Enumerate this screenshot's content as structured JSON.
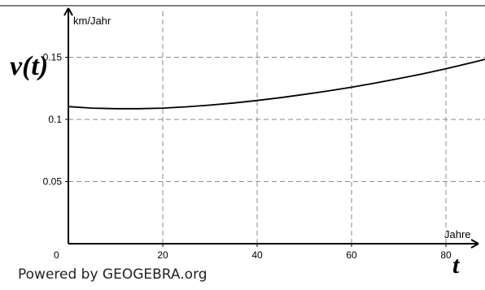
{
  "chart_data": {
    "type": "line",
    "y_axis_unit": "km/Jahr",
    "x_axis_unit": "Jahre",
    "y_symbol": "v(t)",
    "x_symbol": "t",
    "origin_label": "0",
    "x_ticks": [
      20,
      40,
      60,
      80
    ],
    "y_ticks": [
      0.05,
      0.1,
      0.15
    ],
    "y_tick_labels": [
      "0.05",
      "0.1",
      "0.15"
    ],
    "xlim": [
      0,
      90
    ],
    "ylim": [
      0,
      0.18
    ],
    "grid": true,
    "series": [
      {
        "x": [
          0,
          5,
          10,
          15,
          20,
          25,
          30,
          35,
          40,
          45,
          50,
          55,
          60,
          65,
          70,
          75,
          80,
          85,
          90
        ],
        "y": [
          0.1103,
          0.1091,
          0.1086,
          0.1086,
          0.1091,
          0.1101,
          0.1115,
          0.1132,
          0.1152,
          0.1175,
          0.1201,
          0.1229,
          0.1259,
          0.1292,
          0.1328,
          0.1366,
          0.1408,
          0.1452,
          0.15
        ]
      }
    ]
  },
  "footer": {
    "powered_by": "Powered by GEOGEBRA.org"
  }
}
